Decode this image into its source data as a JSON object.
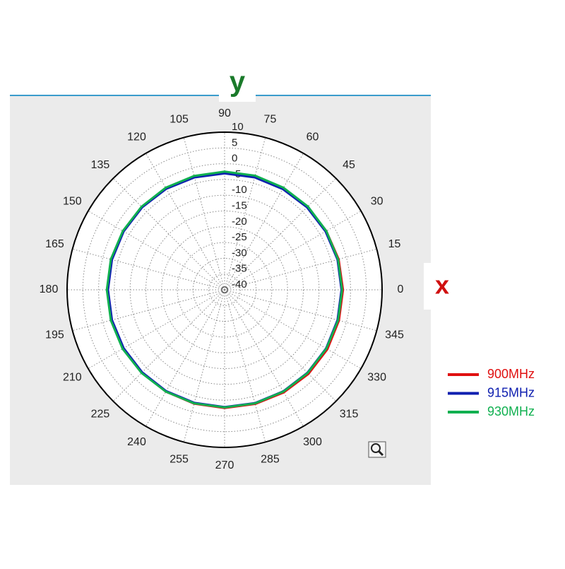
{
  "chart_data": {
    "type": "polar",
    "xlabel": "x",
    "ylabel": "y",
    "x": [
      0,
      15,
      30,
      45,
      60,
      75,
      90,
      105,
      120,
      135,
      150,
      165,
      180,
      195,
      210,
      225,
      240,
      255,
      270,
      285,
      300,
      315,
      330,
      345
    ],
    "xticks": [
      0,
      15,
      30,
      45,
      60,
      75,
      90,
      105,
      120,
      135,
      150,
      165,
      180,
      195,
      210,
      225,
      240,
      255,
      270,
      285,
      300,
      315,
      330,
      345
    ],
    "ylim": [
      -40,
      10
    ],
    "yticks": [
      10,
      5,
      0,
      -5,
      -10,
      -15,
      -20,
      -25,
      -30,
      -35,
      -40
    ],
    "grid": true,
    "series": [
      {
        "name": "900MHz",
        "color": "#e01010",
        "values": [
          -2.4,
          -2.5,
          -2.7,
          -2.8,
          -2.9,
          -2.9,
          -2.9,
          -2.9,
          -2.8,
          -2.8,
          -2.8,
          -2.8,
          -2.8,
          -2.8,
          -2.8,
          -2.8,
          -2.7,
          -2.6,
          -2.5,
          -2.5,
          -2.4,
          -2.3,
          -2.3,
          -2.4
        ]
      },
      {
        "name": "915MHz",
        "color": "#1020b0",
        "values": [
          -2.9,
          -2.9,
          -3.0,
          -3.0,
          -3.1,
          -3.1,
          -3.1,
          -3.1,
          -3.0,
          -3.0,
          -3.0,
          -3.0,
          -3.0,
          -3.0,
          -3.0,
          -3.0,
          -2.9,
          -2.9,
          -2.8,
          -2.8,
          -2.8,
          -2.8,
          -2.8,
          -2.9
        ]
      },
      {
        "name": "930MHz",
        "color": "#10b050",
        "values": [
          -2.7,
          -2.7,
          -2.7,
          -2.6,
          -2.6,
          -2.5,
          -2.5,
          -2.6,
          -2.6,
          -2.7,
          -2.7,
          -2.6,
          -2.6,
          -2.6,
          -2.6,
          -2.7,
          -2.7,
          -2.7,
          -2.7,
          -2.7,
          -2.7,
          -2.7,
          -2.7,
          -2.7
        ]
      }
    ]
  }
}
